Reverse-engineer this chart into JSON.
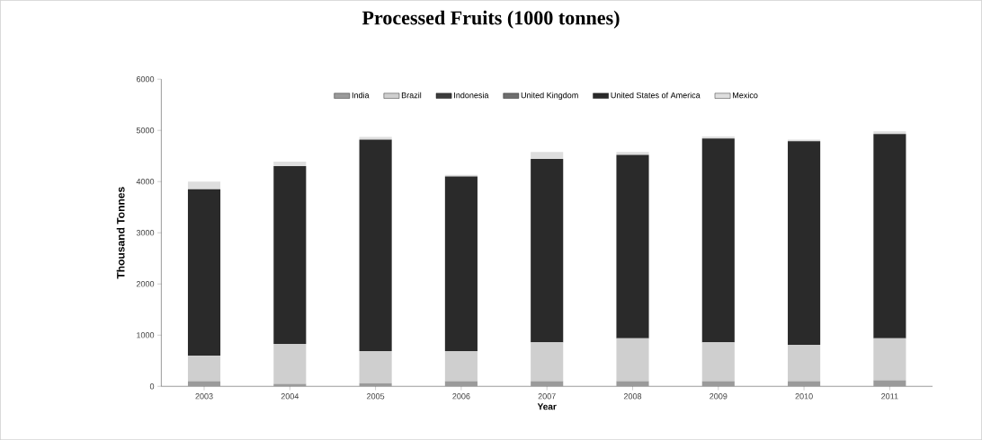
{
  "chart_data": {
    "type": "bar",
    "stacked": true,
    "title": "Processed Fruits (1000 tonnes)",
    "xlabel": "Year",
    "ylabel": "Thousand Tonnes",
    "categories": [
      "2003",
      "2004",
      "2005",
      "2006",
      "2007",
      "2008",
      "2009",
      "2010",
      "2011"
    ],
    "series": [
      {
        "name": "India",
        "color": "#9a9a9a",
        "values": [
          100,
          50,
          60,
          100,
          100,
          100,
          100,
          100,
          120
        ]
      },
      {
        "name": "Brazil",
        "color": "#cfcfcf",
        "values": [
          500,
          780,
          630,
          590,
          760,
          840,
          760,
          710,
          820
        ]
      },
      {
        "name": "Indonesia",
        "color": "#3c3c3c",
        "values": [
          0,
          0,
          0,
          0,
          0,
          0,
          0,
          0,
          0
        ]
      },
      {
        "name": "United Kingdom",
        "color": "#6e6e6e",
        "values": [
          0,
          0,
          0,
          0,
          0,
          0,
          0,
          0,
          0
        ]
      },
      {
        "name": "United States of America",
        "color": "#2a2a2a",
        "values": [
          3250,
          3470,
          4130,
          3410,
          3580,
          3580,
          3980,
          3980,
          3990
        ]
      },
      {
        "name": "Mexico",
        "color": "#dedede",
        "values": [
          150,
          90,
          50,
          30,
          140,
          60,
          40,
          30,
          50
        ]
      }
    ],
    "ylim": [
      0,
      6000
    ],
    "yticks": [
      0,
      1000,
      2000,
      3000,
      4000,
      5000,
      6000
    ],
    "legend": "top"
  }
}
